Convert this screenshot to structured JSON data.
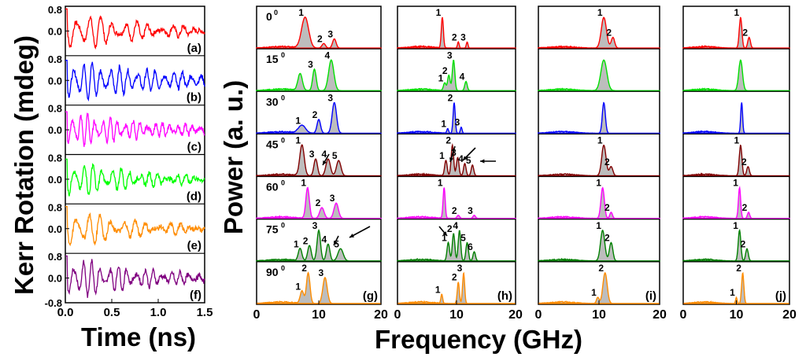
{
  "axis_titles": {
    "kerr_ylabel": "Kerr Rotation (mdeg)",
    "time_xlabel": "Time (ns)",
    "power_ylabel": "Power (a. u.)",
    "freq_xlabel": "Frequency (GHz)"
  },
  "chart_data": [
    {
      "id": "time-traces",
      "type": "line",
      "x_ticks": [
        "0.0",
        "0.5",
        "1.0",
        "1.5"
      ],
      "xlim": [
        0,
        1.5
      ],
      "ylim": [
        -0.8,
        0.8
      ],
      "y_ticks": [
        "0.8",
        "0.0",
        "-0.8"
      ],
      "series": [
        {
          "name": "(a)",
          "color": "#ff0000",
          "amp": 0.55,
          "freq": 7.8,
          "decay": 1.5
        },
        {
          "name": "(b)",
          "color": "#0000ff",
          "amp": 0.5,
          "freq": 10.3,
          "decay": 0.8
        },
        {
          "name": "(c)",
          "color": "#ff00ff",
          "amp": 0.45,
          "freq": 12.4,
          "decay": 1.1
        },
        {
          "name": "(d)",
          "color": "#00ff00",
          "amp": 0.5,
          "freq": 10.0,
          "decay": 1.4
        },
        {
          "name": "(e)",
          "color": "#ff8c00",
          "amp": 0.55,
          "freq": 8.0,
          "decay": 1.7
        },
        {
          "name": "(f)",
          "color": "#800080",
          "amp": 0.55,
          "freq": 10.5,
          "decay": 1.3
        }
      ]
    },
    {
      "id": "spectra",
      "type": "area",
      "xlim": [
        0,
        20
      ],
      "x_ticks": [
        "0",
        "10",
        "20"
      ],
      "angles": [
        "0",
        "15",
        "30",
        "45",
        "60",
        "75",
        "90"
      ],
      "row_colors": [
        "#ff0000",
        "#00e000",
        "#0000ff",
        "#800000",
        "#ff00ff",
        "#008000",
        "#ff8c00"
      ],
      "panels": [
        {
          "label": "(g)",
          "rows": [
            {
              "peaks": [
                [
                  7.8,
                  1.0,
                  0.8
                ],
                [
                  10.8,
                  0.15,
                  0.4
                ],
                [
                  12.5,
                  0.3,
                  0.4
                ]
              ],
              "peak_labels": [
                "1",
                "2",
                "3"
              ]
            },
            {
              "peaks": [
                [
                  7.0,
                  0.55,
                  0.5
                ],
                [
                  9.3,
                  0.7,
                  0.4
                ],
                [
                  12.0,
                  1.0,
                  0.6
                ]
              ],
              "peak_labels": [
                "",
                "3",
                "4"
              ]
            },
            {
              "peaks": [
                [
                  7.3,
                  0.25,
                  0.8
                ],
                [
                  10.0,
                  0.45,
                  0.4
                ],
                [
                  12.5,
                  1.0,
                  0.5
                ]
              ],
              "peak_labels": [
                "1",
                "2",
                "3"
              ]
            },
            {
              "peaks": [
                [
                  7.3,
                  1.0,
                  0.5
                ],
                [
                  9.5,
                  0.55,
                  0.4
                ],
                [
                  11.5,
                  0.55,
                  0.5
                ],
                [
                  13.2,
                  0.5,
                  0.5
                ]
              ],
              "peak_labels": [
                "1",
                "3",
                "4",
                "5"
              ]
            },
            {
              "peaks": [
                [
                  8.2,
                  1.0,
                  0.4
                ],
                [
                  10.5,
                  0.35,
                  0.5
                ],
                [
                  12.8,
                  0.5,
                  0.5
                ]
              ],
              "peak_labels": [
                "1",
                "2",
                "3"
              ]
            },
            {
              "peaks": [
                [
                  7.0,
                  0.4,
                  0.4
                ],
                [
                  8.5,
                  0.5,
                  0.4
                ],
                [
                  10.0,
                  1.0,
                  0.4
                ],
                [
                  11.5,
                  0.55,
                  0.4
                ],
                [
                  13.5,
                  0.4,
                  0.6
                ]
              ],
              "peak_labels": [
                "1",
                "2",
                "3",
                "4",
                "5"
              ]
            },
            {
              "peaks": [
                [
                  7.3,
                  0.4,
                  0.4
                ],
                [
                  8.3,
                  1.0,
                  0.4
                ],
                [
                  11.0,
                  0.85,
                  0.5
                ]
              ],
              "peak_labels": [
                "1",
                "2",
                "3"
              ]
            }
          ]
        },
        {
          "label": "(h)",
          "rows": [
            {
              "peaks": [
                [
                  7.6,
                  1.0,
                  0.25
                ],
                [
                  10.3,
                  0.2,
                  0.2
                ],
                [
                  11.8,
                  0.2,
                  0.2
                ]
              ],
              "peak_labels": [
                "1",
                "2",
                "3"
              ]
            },
            {
              "peaks": [
                [
                  8.0,
                  0.25,
                  0.3
                ],
                [
                  8.7,
                  0.5,
                  0.3
                ],
                [
                  9.5,
                  1.0,
                  0.3
                ],
                [
                  11.6,
                  0.3,
                  0.3
                ]
              ],
              "peak_labels": [
                "1",
                "2",
                "3",
                "4"
              ]
            },
            {
              "peaks": [
                [
                  8.5,
                  0.15,
                  0.2
                ],
                [
                  9.6,
                  1.0,
                  0.25
                ],
                [
                  10.8,
                  0.2,
                  0.2
                ]
              ],
              "peak_labels": [
                "1",
                "2",
                "3"
              ]
            },
            {
              "peaks": [
                [
                  8.2,
                  0.5,
                  0.3
                ],
                [
                  9.3,
                  1.0,
                  0.3
                ],
                [
                  10.2,
                  0.6,
                  0.3
                ],
                [
                  11.4,
                  0.4,
                  0.3
                ],
                [
                  12.7,
                  0.35,
                  0.3
                ]
              ],
              "peak_labels": [
                "1",
                "2",
                "3",
                "4",
                "5"
              ]
            },
            {
              "peaks": [
                [
                  7.9,
                  1.0,
                  0.25
                ],
                [
                  10.3,
                  0.1,
                  0.3
                ],
                [
                  13.0,
                  0.1,
                  0.3
                ]
              ],
              "peak_labels": [
                "1",
                "2",
                "3"
              ]
            },
            {
              "peaks": [
                [
                  8.6,
                  0.6,
                  0.3
                ],
                [
                  9.5,
                  0.9,
                  0.3
                ],
                [
                  10.5,
                  1.0,
                  0.3
                ],
                [
                  11.8,
                  0.6,
                  0.3
                ],
                [
                  13.0,
                  0.3,
                  0.3
                ]
              ],
              "peak_labels": [
                "1",
                "2",
                "4",
                "5",
                "6"
              ]
            },
            {
              "peaks": [
                [
                  7.5,
                  0.3,
                  0.2
                ],
                [
                  10.3,
                  0.7,
                  0.25
                ],
                [
                  11.2,
                  1.0,
                  0.25
                ]
              ],
              "peak_labels": [
                "1",
                "2",
                "3"
              ]
            }
          ]
        },
        {
          "label": "(i)",
          "rows": [
            {
              "peaks": [
                [
                  10.8,
                  1.0,
                  0.6
                ],
                [
                  12.3,
                  0.35,
                  0.4
                ]
              ],
              "peak_labels": [
                "1",
                "2"
              ]
            },
            {
              "peaks": [
                [
                  10.8,
                  1.0,
                  0.7
                ]
              ],
              "peak_labels": [
                ""
              ]
            },
            {
              "peaks": [
                [
                  10.8,
                  1.0,
                  0.35
                ]
              ],
              "peak_labels": [
                ""
              ]
            },
            {
              "peaks": [
                [
                  10.8,
                  1.0,
                  0.5
                ],
                [
                  12.0,
                  0.3,
                  0.4
                ]
              ],
              "peak_labels": [
                "1",
                "2"
              ]
            },
            {
              "peaks": [
                [
                  10.6,
                  1.0,
                  0.4
                ],
                [
                  12.0,
                  0.2,
                  0.3
                ]
              ],
              "peak_labels": [
                "1",
                "2"
              ]
            },
            {
              "peaks": [
                [
                  10.6,
                  1.0,
                  0.5
                ],
                [
                  12.0,
                  0.6,
                  0.4
                ]
              ],
              "peak_labels": [
                "1",
                "2"
              ]
            },
            {
              "peaks": [
                [
                  9.8,
                  0.2,
                  0.3
                ],
                [
                  11.0,
                  1.0,
                  0.5
                ]
              ],
              "peak_labels": [
                "1",
                "2"
              ]
            }
          ]
        },
        {
          "label": "(j)",
          "rows": [
            {
              "peaks": [
                [
                  10.8,
                  1.0,
                  0.35
                ],
                [
                  12.4,
                  0.35,
                  0.35
                ]
              ],
              "peak_labels": [
                "1",
                "2"
              ]
            },
            {
              "peaks": [
                [
                  10.8,
                  1.0,
                  0.5
                ]
              ],
              "peak_labels": [
                ""
              ]
            },
            {
              "peaks": [
                [
                  11.0,
                  1.0,
                  0.25
                ]
              ],
              "peak_labels": [
                ""
              ]
            },
            {
              "peaks": [
                [
                  10.8,
                  1.0,
                  0.35
                ],
                [
                  12.2,
                  0.3,
                  0.35
                ]
              ],
              "peak_labels": [
                "1",
                "2"
              ]
            },
            {
              "peaks": [
                [
                  10.6,
                  1.0,
                  0.3
                ],
                [
                  12.3,
                  0.2,
                  0.3
                ]
              ],
              "peak_labels": [
                "1",
                "2"
              ]
            },
            {
              "peaks": [
                [
                  10.6,
                  1.0,
                  0.35
                ],
                [
                  12.0,
                  0.4,
                  0.35
                ]
              ],
              "peak_labels": [
                "1",
                "2"
              ]
            },
            {
              "peaks": [
                [
                  10.0,
                  0.2,
                  0.2
                ],
                [
                  11.2,
                  1.0,
                  0.3
                ]
              ],
              "peak_labels": [
                "1",
                "2"
              ]
            }
          ]
        }
      ]
    }
  ]
}
